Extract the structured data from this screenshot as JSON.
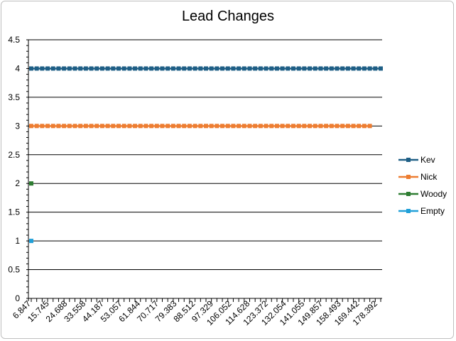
{
  "chart_data": {
    "type": "line",
    "title": "Lead Changes",
    "xlabel": "",
    "ylabel": "",
    "ylim": [
      0,
      4.5
    ],
    "yticks": [
      0,
      0.5,
      1,
      1.5,
      2,
      2.5,
      3,
      3.5,
      4,
      4.5
    ],
    "ytick_labels": [
      "0",
      "0.5",
      "1",
      "1.5",
      "2",
      "2.5",
      "3",
      "3.5",
      "4",
      "4.5"
    ],
    "x_tick_labels": [
      "6.847",
      "15.745",
      "24.688",
      "33.558",
      "44.187",
      "53.057",
      "61.844",
      "70.717",
      "79.383",
      "88.512",
      "97.329",
      "106.052",
      "114.628",
      "123.372",
      "132.054",
      "141.055",
      "149.857",
      "158.493",
      "169.442",
      "178.392"
    ],
    "category_count": 65,
    "grid": true,
    "legend_position": "right",
    "series": [
      {
        "name": "Kev",
        "color": "#1f5f86",
        "marker": "square",
        "start_index": 0,
        "end_index": 64,
        "value": 4
      },
      {
        "name": "Nick",
        "color": "#ed7d31",
        "marker": "square",
        "start_index": 0,
        "end_index": 62,
        "value": 3
      },
      {
        "name": "Woody",
        "color": "#2e7d32",
        "marker": "square",
        "start_index": 0,
        "end_index": 0,
        "value": 2
      },
      {
        "name": "Empty",
        "color": "#21a0d8",
        "marker": "square",
        "start_index": 0,
        "end_index": 0,
        "value": 1
      }
    ]
  }
}
